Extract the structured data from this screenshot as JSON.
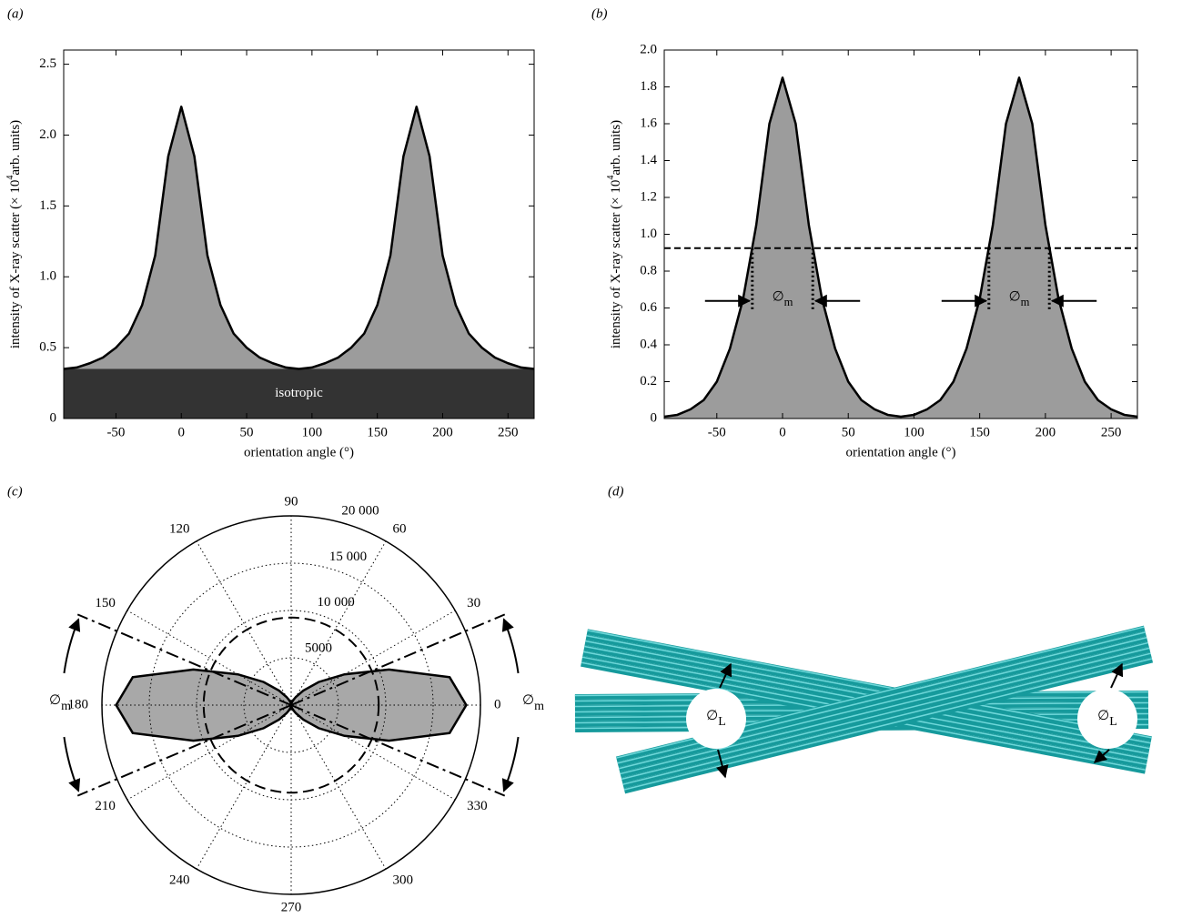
{
  "chart_data": [
    {
      "type": "area",
      "panel_label": "(a)",
      "xlabel": "orientation angle (°)",
      "ylabel": [
        "intensity of X-ray scatter (× 10",
        "4",
        "arb. units)"
      ],
      "x": [
        -90,
        -80,
        -70,
        -60,
        -50,
        -40,
        -30,
        -20,
        -10,
        0,
        10,
        20,
        30,
        40,
        50,
        60,
        70,
        80,
        90,
        100,
        110,
        120,
        130,
        140,
        150,
        160,
        170,
        180,
        190,
        200,
        210,
        220,
        230,
        240,
        250,
        260,
        270
      ],
      "series": [
        {
          "color": "#9c9c9c",
          "line_color": "#000000",
          "values": [
            0.35,
            0.36,
            0.39,
            0.43,
            0.5,
            0.6,
            0.8,
            1.15,
            1.85,
            2.2,
            1.85,
            1.15,
            0.8,
            0.6,
            0.5,
            0.43,
            0.39,
            0.36,
            0.35,
            0.36,
            0.39,
            0.43,
            0.5,
            0.6,
            0.8,
            1.15,
            1.85,
            2.2,
            1.85,
            1.15,
            0.8,
            0.6,
            0.5,
            0.43,
            0.39,
            0.36,
            0.35
          ]
        }
      ],
      "baseline": {
        "label": "isotropic",
        "value": 0.35,
        "color": "#333333"
      },
      "xlim": [
        -90,
        270
      ],
      "xticks": [
        -50,
        0,
        50,
        100,
        150,
        200,
        250
      ],
      "ylim": [
        0,
        2.6
      ],
      "yticks": [
        0,
        0.5,
        {
          "value": 1,
          "label": "1.0"
        },
        1.5,
        {
          "value": 2,
          "label": "2.0"
        },
        2.5
      ]
    },
    {
      "type": "area",
      "panel_label": "(b)",
      "xlabel": "orientation angle (°)",
      "ylabel": [
        "intensity of X-ray scatter (× 10",
        "4",
        "arb. units)"
      ],
      "x": [
        -90,
        -80,
        -70,
        -60,
        -50,
        -40,
        -30,
        -20,
        -10,
        0,
        10,
        20,
        30,
        40,
        50,
        60,
        70,
        80,
        90,
        100,
        110,
        120,
        130,
        140,
        150,
        160,
        170,
        180,
        190,
        200,
        210,
        220,
        230,
        240,
        250,
        260,
        270
      ],
      "series": [
        {
          "color": "#9c9c9c",
          "line_color": "#000000",
          "values": [
            0.01,
            0.02,
            0.05,
            0.1,
            0.2,
            0.38,
            0.65,
            1.05,
            1.6,
            1.85,
            1.6,
            1.05,
            0.65,
            0.38,
            0.2,
            0.1,
            0.05,
            0.02,
            0.01,
            0.02,
            0.05,
            0.1,
            0.2,
            0.38,
            0.65,
            1.05,
            1.6,
            1.85,
            1.6,
            1.05,
            0.65,
            0.38,
            0.2,
            0.1,
            0.05,
            0.02,
            0.01
          ]
        }
      ],
      "half_max": 0.925,
      "fwhm_edges": [
        -23,
        23,
        157,
        203
      ],
      "annotation": {
        "symbol": "∅",
        "subscript": "m"
      },
      "xlim": [
        -90,
        270
      ],
      "xticks": [
        -50,
        0,
        50,
        100,
        150,
        200,
        250
      ],
      "ylim": [
        0,
        2
      ],
      "yticks": [
        0,
        0.2,
        0.4,
        0.6,
        0.8,
        {
          "value": 1,
          "label": "1.0"
        },
        1.2,
        1.4,
        1.6,
        1.8,
        {
          "value": 2,
          "label": "2.0"
        }
      ]
    },
    {
      "type": "polar",
      "panel_label": "(c)",
      "theta": [
        0,
        10,
        20,
        30,
        40,
        50,
        60,
        70,
        80,
        90,
        100,
        110,
        120,
        130,
        140,
        150,
        160,
        170,
        180,
        190,
        200,
        210,
        220,
        230,
        240,
        250,
        260,
        270,
        280,
        290,
        300,
        310,
        320,
        330,
        340,
        350
      ],
      "values": [
        18500,
        17000,
        11000,
        6500,
        3800,
        2000,
        1000,
        500,
        200,
        100,
        200,
        500,
        1000,
        2000,
        3800,
        6500,
        11000,
        17000,
        18500,
        17000,
        11000,
        6500,
        3800,
        2000,
        1000,
        500,
        200,
        100,
        200,
        500,
        1000,
        2000,
        3800,
        6500,
        11000,
        17000
      ],
      "color": "#a8a8a8",
      "rlim": [
        0,
        20000
      ],
      "rticks": [
        5000,
        {
          "value": 10000,
          "label": "10 000"
        },
        {
          "value": 15000,
          "label": "15 000"
        },
        {
          "value": 20000,
          "label": "20 000"
        }
      ],
      "thetaticks": [
        0,
        30,
        60,
        90,
        120,
        150,
        180,
        210,
        240,
        270,
        300,
        330
      ],
      "half_max": 9250,
      "fwhm_angles": [
        23,
        157,
        203,
        337
      ],
      "annotation": {
        "symbol": "∅",
        "subscript": "m"
      }
    }
  ],
  "illustration": {
    "panel_label": "(d)",
    "annotations": [
      {
        "symbol": "∅",
        "subscript": "L"
      },
      {
        "symbol": "∅",
        "subscript": "L"
      }
    ]
  }
}
